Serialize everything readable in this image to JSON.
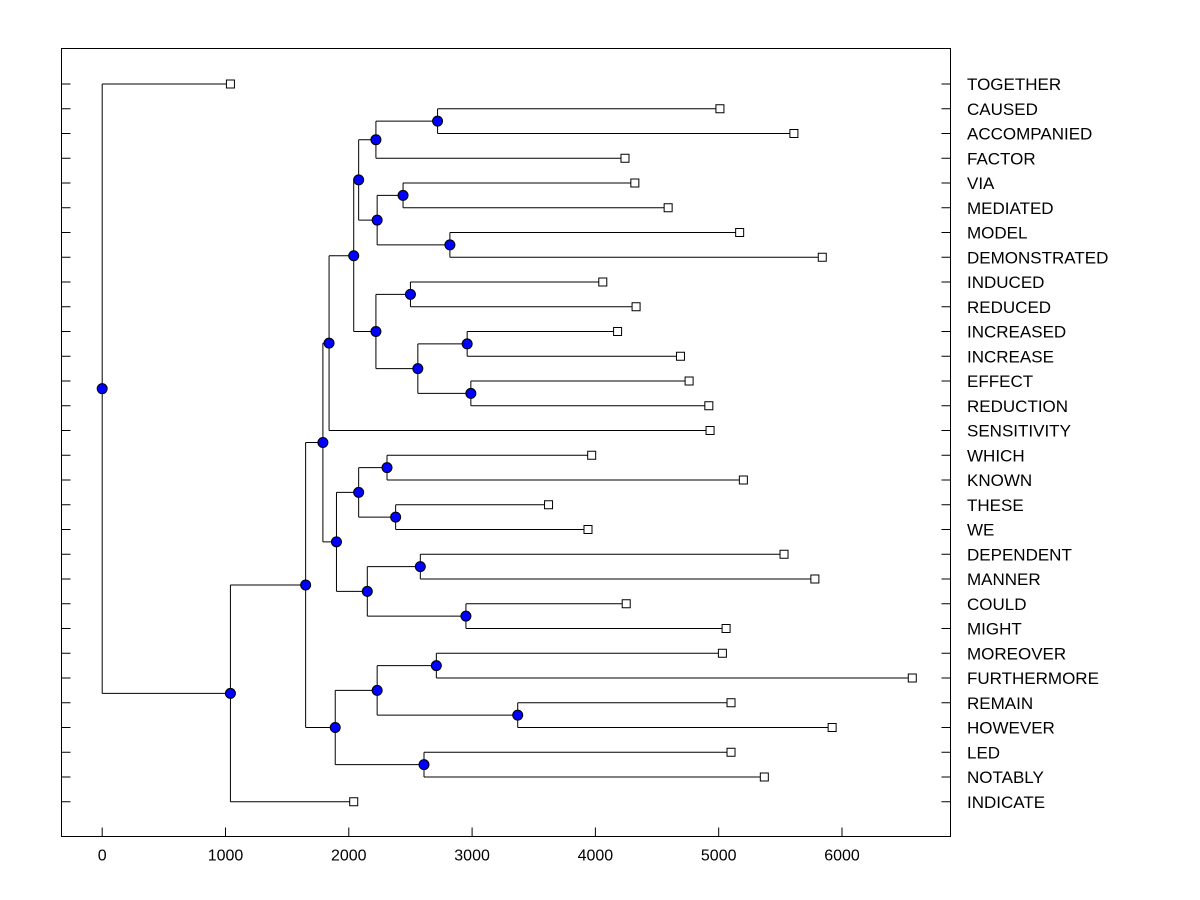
{
  "chart_data": {
    "type": "dendrogram",
    "title": "",
    "xlabel": "",
    "ylabel": "",
    "xlim": [
      -330,
      6880
    ],
    "x_ticks": [
      0,
      1000,
      2000,
      3000,
      4000,
      5000,
      6000
    ],
    "colors": {
      "node": "#0000ff",
      "leaf": "#ffffff",
      "line": "#000000"
    },
    "leaves": [
      {
        "label": "TOGETHER",
        "x": 1040
      },
      {
        "label": "CAUSED",
        "x": 5010
      },
      {
        "label": "ACCOMPANIED",
        "x": 5610
      },
      {
        "label": "FACTOR",
        "x": 4240
      },
      {
        "label": "VIA",
        "x": 4320
      },
      {
        "label": "MEDIATED",
        "x": 4590
      },
      {
        "label": "MODEL",
        "x": 5170
      },
      {
        "label": "DEMONSTRATED",
        "x": 5840
      },
      {
        "label": "INDUCED",
        "x": 4060
      },
      {
        "label": "REDUCED",
        "x": 4330
      },
      {
        "label": "INCREASED",
        "x": 4180
      },
      {
        "label": "INCREASE",
        "x": 4690
      },
      {
        "label": "EFFECT",
        "x": 4760
      },
      {
        "label": "REDUCTION",
        "x": 4920
      },
      {
        "label": "SENSITIVITY",
        "x": 4930
      },
      {
        "label": "WHICH",
        "x": 3970
      },
      {
        "label": "KNOWN",
        "x": 5200
      },
      {
        "label": "THESE",
        "x": 3620
      },
      {
        "label": "WE",
        "x": 3940
      },
      {
        "label": "DEPENDENT",
        "x": 5530
      },
      {
        "label": "MANNER",
        "x": 5780
      },
      {
        "label": "COULD",
        "x": 4250
      },
      {
        "label": "MIGHT",
        "x": 5060
      },
      {
        "label": "MOREOVER",
        "x": 5030
      },
      {
        "label": "FURTHERMORE",
        "x": 6570
      },
      {
        "label": "REMAIN",
        "x": 5100
      },
      {
        "label": "HOWEVER",
        "x": 5920
      },
      {
        "label": "LED",
        "x": 5100
      },
      {
        "label": "NOTABLY",
        "x": 5370
      },
      {
        "label": "INDICATE",
        "x": 2040
      }
    ],
    "merges": [
      {
        "id": "n_caused",
        "x": 2720,
        "children": [
          "L1",
          "L2"
        ]
      },
      {
        "id": "n_factor",
        "x": 2220,
        "children": [
          "n_caused",
          "L3"
        ]
      },
      {
        "id": "n_via",
        "x": 2440,
        "children": [
          "L4",
          "L5"
        ]
      },
      {
        "id": "n_model",
        "x": 2820,
        "children": [
          "L6",
          "L7"
        ]
      },
      {
        "id": "n_mediated",
        "x": 2230,
        "children": [
          "n_via",
          "n_model"
        ]
      },
      {
        "id": "n_top1",
        "x": 2080,
        "children": [
          "n_factor",
          "n_mediated"
        ]
      },
      {
        "id": "n_induced",
        "x": 2500,
        "children": [
          "L8",
          "L9"
        ]
      },
      {
        "id": "n_increased",
        "x": 2960,
        "children": [
          "L10",
          "L11"
        ]
      },
      {
        "id": "n_effect",
        "x": 2990,
        "children": [
          "L12",
          "L13"
        ]
      },
      {
        "id": "n_incr_eff",
        "x": 2560,
        "children": [
          "n_increased",
          "n_effect"
        ]
      },
      {
        "id": "n_top2",
        "x": 2220,
        "children": [
          "n_induced",
          "n_incr_eff"
        ]
      },
      {
        "id": "n_top3",
        "x": 2040,
        "children": [
          "n_top1",
          "n_top2"
        ]
      },
      {
        "id": "n_top4",
        "x": 1840,
        "children": [
          "n_top3",
          "L14"
        ]
      },
      {
        "id": "n_which",
        "x": 2310,
        "children": [
          "L15",
          "L16"
        ]
      },
      {
        "id": "n_these",
        "x": 2380,
        "children": [
          "L17",
          "L18"
        ]
      },
      {
        "id": "n_which_these",
        "x": 2080,
        "children": [
          "n_which",
          "n_these"
        ]
      },
      {
        "id": "n_dependent",
        "x": 2580,
        "children": [
          "L19",
          "L20"
        ]
      },
      {
        "id": "n_could",
        "x": 2950,
        "children": [
          "L21",
          "L22"
        ]
      },
      {
        "id": "n_dep_could",
        "x": 2150,
        "children": [
          "n_dependent",
          "n_could"
        ]
      },
      {
        "id": "n_mid",
        "x": 1900,
        "children": [
          "n_which_these",
          "n_dep_could"
        ]
      },
      {
        "id": "n_upper",
        "x": 1790,
        "children": [
          "n_top4",
          "n_mid"
        ]
      },
      {
        "id": "n_moreover",
        "x": 2710,
        "children": [
          "L23",
          "L24"
        ]
      },
      {
        "id": "n_remain",
        "x": 3370,
        "children": [
          "L25",
          "L26"
        ]
      },
      {
        "id": "n_mor_rem",
        "x": 2230,
        "children": [
          "n_moreover",
          "n_remain"
        ]
      },
      {
        "id": "n_led",
        "x": 2610,
        "children": [
          "L27",
          "L28"
        ]
      },
      {
        "id": "n_lower",
        "x": 1890,
        "children": [
          "n_mor_rem",
          "n_led"
        ]
      },
      {
        "id": "n_big",
        "x": 1650,
        "children": [
          "n_upper",
          "n_lower"
        ]
      },
      {
        "id": "n_main",
        "x": 1040,
        "children": [
          "n_big",
          "L29"
        ]
      },
      {
        "id": "n_root",
        "x": 0,
        "children": [
          "L0",
          "n_main"
        ]
      }
    ]
  }
}
